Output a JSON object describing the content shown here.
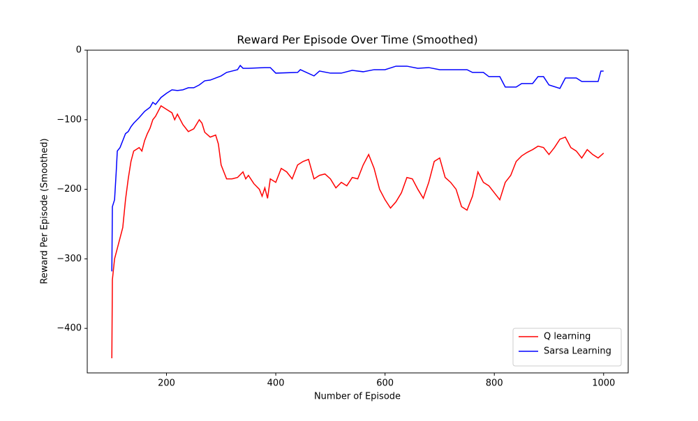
{
  "chart_data": {
    "type": "line",
    "title": "Reward Per Episode Over Time (Smoothed)",
    "x_label": "Number of Episode",
    "y_label": "Reward Per Episode (Smoothed)",
    "xlim": [
      55,
      1045
    ],
    "ylim": [
      -464,
      0
    ],
    "xticks": [
      200,
      400,
      600,
      800,
      1000
    ],
    "yticks": [
      0,
      {
        "value": -100,
        "label": "−100"
      },
      {
        "value": -200,
        "label": "−200"
      },
      {
        "value": -300,
        "label": "−300"
      },
      {
        "value": -400,
        "label": "−400"
      }
    ],
    "legend": "lower right",
    "series": [
      {
        "name": "Q learning",
        "color": "#ff0000",
        "x": [
          100,
          101,
          105,
          110,
          115,
          120,
          125,
          130,
          135,
          140,
          150,
          155,
          160,
          165,
          170,
          175,
          180,
          190,
          200,
          210,
          215,
          220,
          230,
          240,
          250,
          260,
          265,
          270,
          280,
          290,
          295,
          300,
          310,
          320,
          330,
          340,
          345,
          350,
          360,
          370,
          375,
          380,
          385,
          390,
          400,
          410,
          420,
          430,
          440,
          450,
          460,
          470,
          480,
          490,
          500,
          510,
          520,
          530,
          540,
          550,
          560,
          570,
          580,
          590,
          600,
          610,
          620,
          630,
          640,
          650,
          660,
          670,
          680,
          690,
          700,
          710,
          720,
          730,
          740,
          750,
          760,
          770,
          780,
          790,
          800,
          810,
          820,
          830,
          840,
          850,
          860,
          870,
          880,
          890,
          900,
          910,
          920,
          930,
          940,
          950,
          960,
          970,
          980,
          990,
          1000
        ],
        "values": [
          -443,
          -330,
          -300,
          -285,
          -270,
          -255,
          -215,
          -185,
          -160,
          -145,
          -140,
          -145,
          -130,
          -120,
          -112,
          -100,
          -95,
          -80,
          -85,
          -90,
          -100,
          -92,
          -107,
          -117,
          -113,
          -100,
          -105,
          -118,
          -125,
          -122,
          -135,
          -165,
          -185,
          -185,
          -183,
          -175,
          -185,
          -180,
          -192,
          -200,
          -210,
          -198,
          -213,
          -185,
          -190,
          -170,
          -175,
          -185,
          -165,
          -160,
          -157,
          -185,
          -180,
          -178,
          -185,
          -198,
          -190,
          -195,
          -183,
          -185,
          -165,
          -150,
          -170,
          -200,
          -215,
          -227,
          -218,
          -205,
          -183,
          -185,
          -200,
          -213,
          -190,
          -160,
          -155,
          -183,
          -190,
          -200,
          -225,
          -230,
          -210,
          -175,
          -190,
          -195,
          -205,
          -215,
          -190,
          -180,
          -160,
          -152,
          -147,
          -143,
          -138,
          -140,
          -150,
          -140,
          -128,
          -125,
          -140,
          -145,
          -155,
          -143,
          -150,
          -155,
          -148
        ]
      },
      {
        "name": "Sarsa Learning",
        "color": "#0000ff",
        "x": [
          100,
          101,
          105,
          108,
          110,
          115,
          120,
          125,
          130,
          135,
          140,
          150,
          160,
          170,
          175,
          180,
          190,
          200,
          210,
          220,
          230,
          240,
          250,
          260,
          270,
          280,
          290,
          300,
          310,
          320,
          330,
          335,
          340,
          350,
          380,
          390,
          400,
          440,
          445,
          470,
          480,
          500,
          520,
          540,
          560,
          580,
          600,
          620,
          640,
          660,
          680,
          700,
          750,
          760,
          780,
          790,
          810,
          820,
          840,
          850,
          870,
          880,
          890,
          900,
          920,
          930,
          950,
          960,
          990,
          995,
          1000
        ],
        "values": [
          -318,
          -225,
          -215,
          -175,
          -145,
          -140,
          -130,
          -120,
          -117,
          -110,
          -105,
          -97,
          -88,
          -82,
          -75,
          -78,
          -68,
          -62,
          -57,
          -58,
          -57,
          -54,
          -54,
          -50,
          -44,
          -43,
          -40,
          -37,
          -32,
          -30,
          -28,
          -22,
          -26,
          -26,
          -25,
          -25,
          -33,
          -32,
          -28,
          -37,
          -30,
          -33,
          -33,
          -29,
          -31,
          -28,
          -28,
          -23,
          -23,
          -26,
          -25,
          -28,
          -28,
          -32,
          -32,
          -38,
          -38,
          -53,
          -53,
          -48,
          -48,
          -38,
          -38,
          -50,
          -55,
          -40,
          -40,
          -45,
          -45,
          -30,
          -30
        ]
      }
    ]
  }
}
